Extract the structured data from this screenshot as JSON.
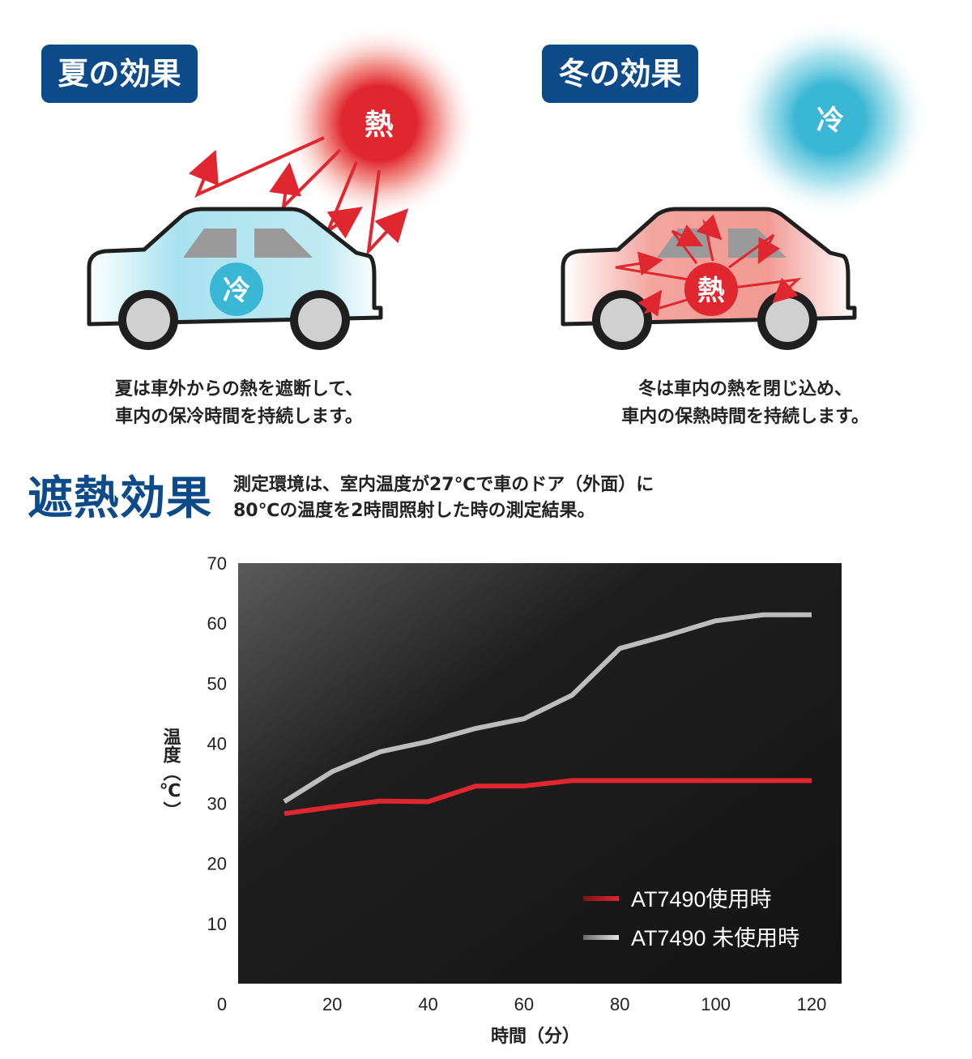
{
  "summer": {
    "badge": "夏の効果",
    "heat_label": "熱",
    "cold_label": "冷",
    "caption_line1": "夏は車外からの熱を遮断して、",
    "caption_line2": "車内の保冷時間を持続します。"
  },
  "winter": {
    "badge": "冬の効果",
    "cold_label": "冷",
    "heat_label": "熱",
    "caption_line1": "冬は車内の熱を閉じ込め、",
    "caption_line2": "車内の保熱時間を持続します。"
  },
  "section": {
    "title": "遮熱効果",
    "desc_line1": "測定環境は、室内温度が27℃で車のドア（外面）に",
    "desc_line2": "80℃の温度を2時間照射した時の測定結果。"
  },
  "colors": {
    "badge": "#0d4a8a",
    "heat": "#e0262e",
    "cold": "#39b7d4",
    "with_line": "#e0262e",
    "without_line": "#bdbdbd"
  },
  "chart_data": {
    "type": "line",
    "title": "",
    "xlabel": "時間（分）",
    "ylabel": "温度（℃）",
    "xlim": [
      0,
      120
    ],
    "ylim": [
      0,
      70
    ],
    "x_ticks": [
      0,
      20,
      40,
      60,
      80,
      100,
      120
    ],
    "y_ticks": [
      10,
      20,
      30,
      40,
      50,
      60,
      70
    ],
    "legend_position": "bottom-right",
    "grid": false,
    "series": [
      {
        "name": "AT7490使用時",
        "color": "#e0262e",
        "x": [
          10,
          20,
          30,
          40,
          50,
          60,
          70,
          80,
          90,
          100,
          110,
          120
        ],
        "y": [
          28.3,
          29.4,
          30.4,
          30.3,
          32.9,
          32.9,
          33.8,
          33.8,
          33.8,
          33.8,
          33.8,
          33.8
        ]
      },
      {
        "name": "AT7490 未使用時",
        "color": "#bdbdbd",
        "x": [
          10,
          20,
          30,
          40,
          50,
          60,
          70,
          80,
          90,
          100,
          110,
          120
        ],
        "y": [
          30.3,
          35.3,
          38.6,
          40.3,
          42.5,
          44.1,
          48.0,
          55.8,
          58.0,
          60.4,
          61.4,
          61.4
        ]
      }
    ]
  }
}
